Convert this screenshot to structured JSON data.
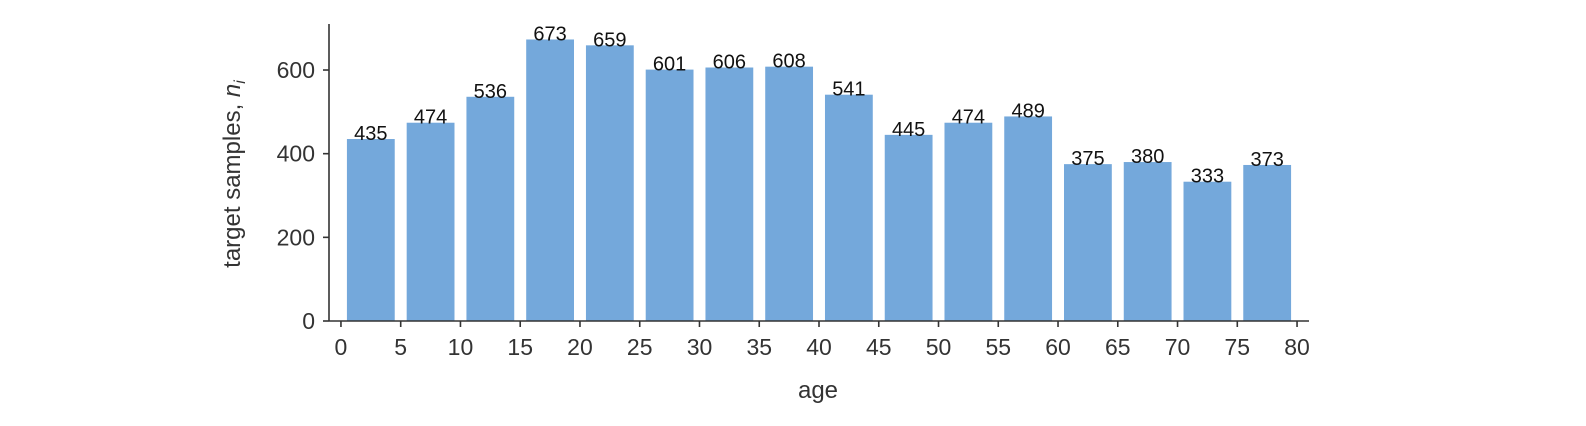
{
  "chart_data": {
    "type": "bar",
    "xlabel": "age",
    "ylabel": "target samples, ",
    "ylabel_math": "n",
    "ylabel_math_sub": "i",
    "x_bin_edges": [
      0,
      5,
      10,
      15,
      20,
      25,
      30,
      35,
      40,
      45,
      50,
      55,
      60,
      65,
      70,
      75,
      80
    ],
    "values": [
      435,
      474,
      536,
      673,
      659,
      601,
      606,
      608,
      541,
      445,
      474,
      489,
      375,
      380,
      333,
      373
    ],
    "data_labels": [
      "435",
      "474",
      "536",
      "673",
      "659",
      "601",
      "606",
      "608",
      "541",
      "445",
      "474",
      "489",
      "375",
      "380",
      "333",
      "373"
    ],
    "xticks": [
      "0",
      "5",
      "10",
      "15",
      "20",
      "25",
      "30",
      "35",
      "40",
      "45",
      "50",
      "55",
      "60",
      "65",
      "70",
      "75",
      "80"
    ],
    "yticks": [
      0,
      200,
      400,
      600
    ],
    "ytick_labels": [
      "0",
      "200",
      "400",
      "600"
    ],
    "xlim": [
      -1,
      81
    ],
    "ylim": [
      0,
      710
    ],
    "bar_color": "#74a8db",
    "grid": false,
    "legend": "none"
  }
}
